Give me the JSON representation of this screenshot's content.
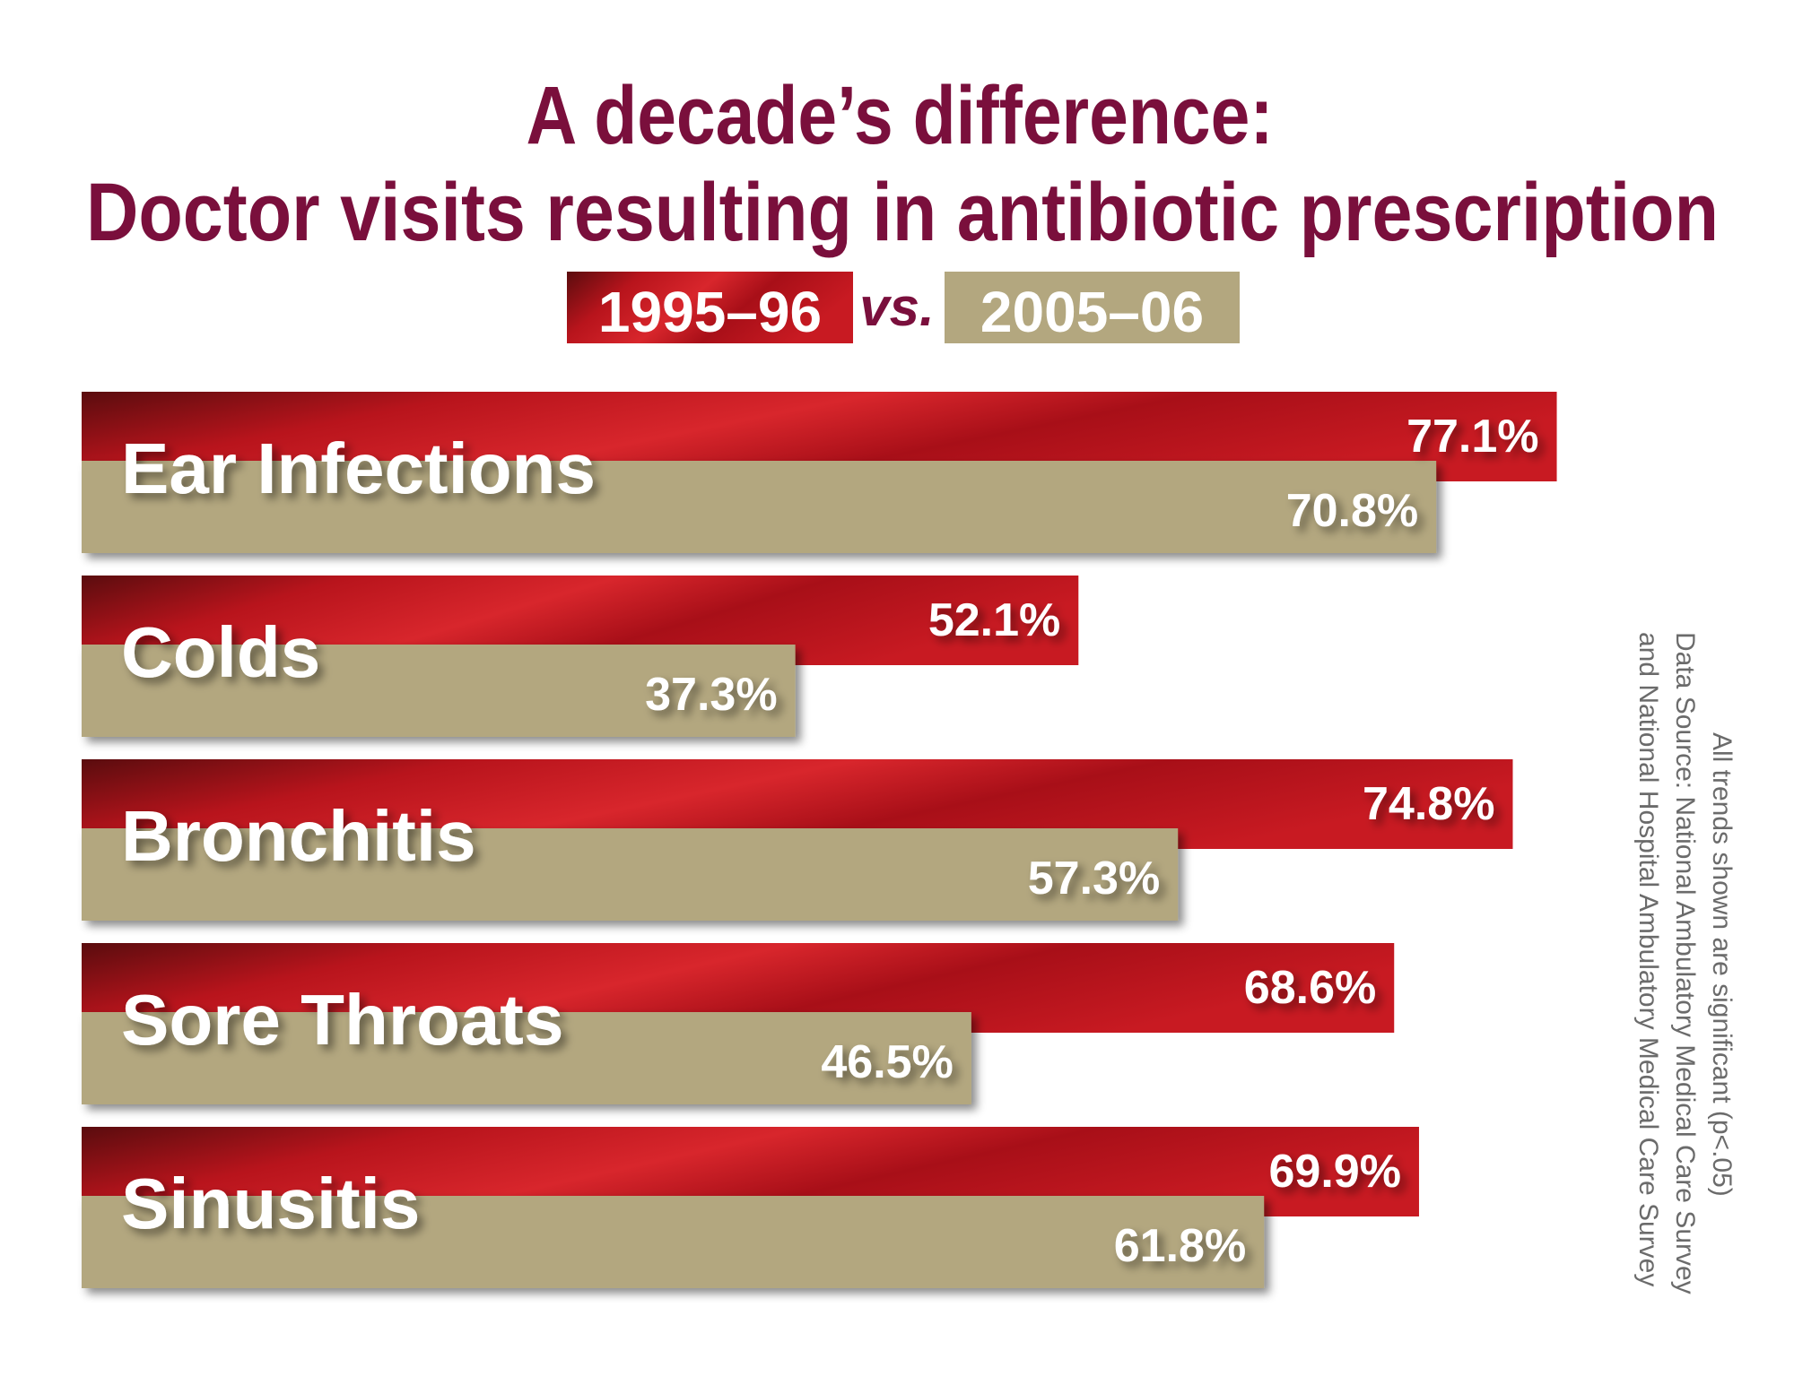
{
  "chart_data": {
    "type": "bar",
    "orientation": "horizontal",
    "title": [
      "A decade’s difference:",
      "Doctor visits resulting in antibiotic prescription"
    ],
    "legend_separator": "vs.",
    "categories": [
      "Ear Infections",
      "Colds",
      "Bronchitis",
      "Sore Throats",
      "Sinusitis"
    ],
    "series": [
      {
        "name": "1995–96",
        "color": "#b8141c",
        "values": [
          77.1,
          52.1,
          74.8,
          68.6,
          69.9
        ],
        "value_labels": [
          "77.1%",
          "52.1%",
          "74.8%",
          "68.6%",
          "69.9%"
        ]
      },
      {
        "name": "2005–06",
        "color": "#b3a77f",
        "values": [
          70.8,
          37.3,
          57.3,
          46.5,
          61.8
        ],
        "value_labels": [
          "70.8%",
          "37.3%",
          "57.3%",
          "46.5%",
          "61.8%"
        ]
      }
    ],
    "notes": [
      "All trends shown are significant (p<.05)",
      "Data Source: National Ambulatory Medical Care Survey",
      "and National Hospital Ambulatory Medical Care Survey"
    ]
  }
}
